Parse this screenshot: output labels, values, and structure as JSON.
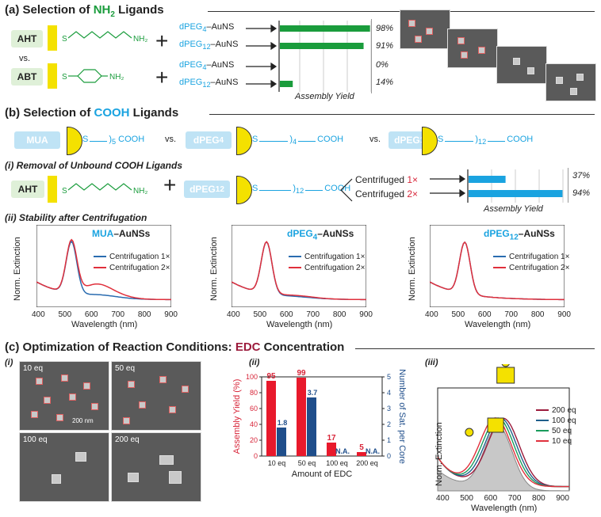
{
  "panel_a": {
    "title_prefix": "(a) Selection of ",
    "title_nh2": "NH",
    "title_sub": "2",
    "title_suffix": " Ligands",
    "aht": "AHT",
    "abt": "ABT",
    "vs": "vs.",
    "nh2": "NH",
    "nh2sub": "2",
    "rows": [
      {
        "label": "dPEG",
        "sub": "4",
        "tail": "–AuNS",
        "pct": "98%",
        "value": 98
      },
      {
        "label": "dPEG",
        "sub": "12",
        "tail": "–AuNS",
        "pct": "91%",
        "value": 91
      },
      {
        "label": "dPEG",
        "sub": "4",
        "tail": "–AuNS",
        "pct": "0%",
        "value": 0
      },
      {
        "label": "dPEG",
        "sub": "12",
        "tail": "–AuNS",
        "pct": "14%",
        "value": 14
      }
    ],
    "axis_label": "Assembly Yield"
  },
  "panel_b": {
    "title_prefix": "(b) Selection of ",
    "title_cooh": "COOH",
    "title_suffix": " Ligands",
    "mua": "MUA",
    "dpeg4": "dPEG",
    "dpeg4sub": "4",
    "dpeg12": "dPEG",
    "dpeg12sub": "12",
    "vs": "vs.",
    "cooh": "COOH",
    "sub5": "5",
    "sub4": "4",
    "sub12": "12",
    "sub_i": "(i) Removal of Unbound COOH Ligands",
    "aht": "AHT",
    "centrifuged": [
      {
        "label": "Centrifuged ",
        "times": "1×",
        "pct": "37%",
        "value": 37
      },
      {
        "label": "Centrifuged ",
        "times": "2×",
        "pct": "94%",
        "value": 94
      }
    ],
    "axis_label": "Assembly Yield",
    "sub_ii": "(ii) Stability after Centrifugation",
    "spectra": [
      {
        "title_a": "MUA",
        "title_b": "–AuNSs"
      },
      {
        "title_a": "dPEG",
        "title_sub": "4",
        "title_b": "–AuNSs"
      },
      {
        "title_a": "dPEG",
        "title_sub": "12",
        "title_b": "–AuNSs"
      }
    ],
    "legend": [
      "Centrifugation 1×",
      "Centrifugation 2×"
    ],
    "ylabel": "Norm. Extinction",
    "xlabel": "Wavelength (nm)",
    "ticks": [
      "400",
      "500",
      "600",
      "700",
      "800",
      "900"
    ],
    "colors": {
      "c1": "#2a6cb0",
      "c2": "#e0303c"
    }
  },
  "panel_c": {
    "title_prefix": "(c) Optimization of Reaction Conditions: ",
    "title_edc": "EDC",
    "title_suffix": " Concentration",
    "sub_i": "(i)",
    "sub_ii": "(ii)",
    "sub_iii": "(iii)",
    "sem_labels": [
      "10 eq",
      "50 eq",
      "100 eq",
      "200 eq"
    ],
    "scale": "200 nm",
    "chart_data": {
      "type": "bar",
      "categories": [
        "10 eq",
        "50 eq",
        "100 eq",
        "200 eq"
      ],
      "series": [
        {
          "name": "Assembly Yield (%)",
          "values": [
            95,
            99,
            17,
            5
          ],
          "labels": [
            "95",
            "99",
            "17",
            "5"
          ]
        },
        {
          "name": "Number of Sat. per Core",
          "values": [
            1.8,
            3.7,
            0,
            0
          ],
          "labels": [
            "1.8",
            "3.7",
            "N.A.",
            "N.A."
          ]
        }
      ],
      "ylabel_left": "Assembly Yield (%)",
      "ylabel_right": "Number of Sat. per Core",
      "xlabel": "Amount of EDC",
      "left_ticks": [
        "0",
        "20",
        "40",
        "60",
        "80",
        "100"
      ],
      "right_ticks": [
        "0",
        "1",
        "2",
        "3",
        "4",
        "5"
      ],
      "ylim_left": [
        0,
        100
      ],
      "ylim_right": [
        0,
        5
      ]
    },
    "legend": [
      "200 eq",
      "100 eq",
      "50 eq",
      "10 eq"
    ],
    "legend_colors": [
      "#9c1b3c",
      "#1f5f8b",
      "#1a9c5c",
      "#e0303c"
    ],
    "ylabel": "Norm. Extinction",
    "xlabel": "Wavelength (nm)",
    "ticks": [
      "400",
      "500",
      "600",
      "700",
      "800",
      "900"
    ]
  }
}
